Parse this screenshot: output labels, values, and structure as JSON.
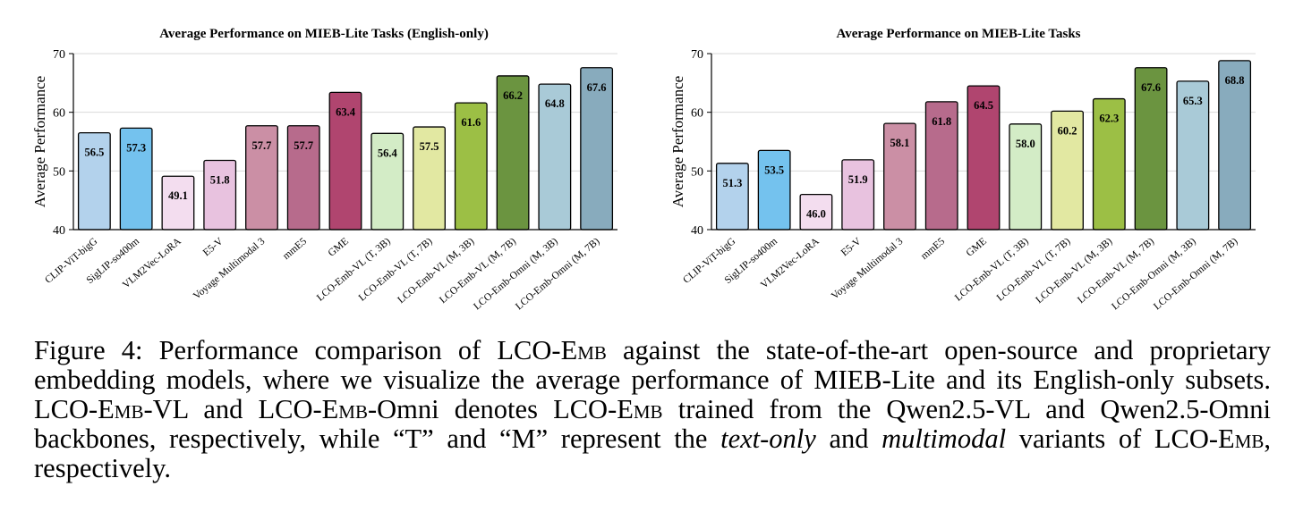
{
  "chart_data": [
    {
      "type": "bar",
      "title": "Average Performance on MIEB-Lite Tasks (English-only)",
      "xlabel": "",
      "ylabel": "Average Performance",
      "ylim": [
        40,
        70
      ],
      "yticks": [
        40,
        50,
        60,
        70
      ],
      "categories": [
        "CLIP-ViT-bigG",
        "SigLIP-so400m",
        "VLM2Vec-LoRA",
        "E5-V",
        "Voyage Multimodal 3",
        "mmE5",
        "GME",
        "LCO-Emb-VL (T, 3B)",
        "LCO-Emb-VL (T, 7B)",
        "LCO-Emb-VL (M, 3B)",
        "LCO-Emb-VL (M, 7B)",
        "LCO-Emb-Omni (M, 3B)",
        "LCO-Emb-Omni (M, 7B)"
      ],
      "values": [
        56.5,
        57.3,
        49.1,
        51.8,
        57.7,
        57.7,
        63.4,
        56.4,
        57.5,
        61.6,
        66.2,
        64.8,
        67.6
      ],
      "value_labels": [
        "56.5",
        "57.3",
        "49.1",
        "51.8",
        "57.7",
        "57.7",
        "63.4",
        "56.4",
        "57.5",
        "61.6",
        "66.2",
        "64.8",
        "67.6"
      ],
      "colors": [
        "#b3d2ec",
        "#74c2ee",
        "#f3ddef",
        "#e8c2df",
        "#cb8fa5",
        "#b76b8c",
        "#b0456f",
        "#d3ecc6",
        "#e2e8a2",
        "#9cbf45",
        "#6b9440",
        "#a9cad7",
        "#88abbd"
      ]
    },
    {
      "type": "bar",
      "title": "Average Performance on MIEB-Lite Tasks",
      "xlabel": "",
      "ylabel": "Average Performance",
      "ylim": [
        40,
        70
      ],
      "yticks": [
        40,
        50,
        60,
        70
      ],
      "categories": [
        "CLIP-ViT-bigG",
        "SigLIP-so400m",
        "VLM2Vec-LoRA",
        "E5-V",
        "Voyage Multimodal 3",
        "mmE5",
        "GME",
        "LCO-Emb-VL (T, 3B)",
        "LCO-Emb-VL (T, 7B)",
        "LCO-Emb-VL (M, 3B)",
        "LCO-Emb-VL (M, 7B)",
        "LCO-Emb-Omni (M, 3B)",
        "LCO-Emb-Omni (M, 7B)"
      ],
      "values": [
        51.3,
        53.5,
        46.0,
        51.9,
        58.1,
        61.8,
        64.5,
        58.0,
        60.2,
        62.3,
        67.6,
        65.3,
        68.8
      ],
      "value_labels": [
        "51.3",
        "53.5",
        "46.0",
        "51.9",
        "58.1",
        "61.8",
        "64.5",
        "58.0",
        "60.2",
        "62.3",
        "67.6",
        "65.3",
        "68.8"
      ],
      "colors": [
        "#b3d2ec",
        "#74c2ee",
        "#f3ddef",
        "#e8c2df",
        "#cb8fa5",
        "#b76b8c",
        "#b0456f",
        "#d3ecc6",
        "#e2e8a2",
        "#9cbf45",
        "#6b9440",
        "#a9cad7",
        "#88abbd"
      ]
    }
  ],
  "caption": {
    "lead": "Figure 4:  Performance comparison of LCO-E",
    "sc1": "mb",
    "p1": " against the state-of-the-art open-source and proprietary embedding models, where we visualize the average performance of MIEB-Lite and its English-only subsets. LCO-E",
    "sc2": "mb",
    "p2": "-VL and LCO-E",
    "sc3": "mb",
    "p3": "-Omni denotes LCO-E",
    "sc4": "mb",
    "p4": " trained from the Qwen2.5-VL and Qwen2.5-Omni backbones, respectively, while “T” and “M” represent the ",
    "italic1": "text-only",
    "p5": " and ",
    "italic2": "multimodal",
    "p6": " variants of LCO-E",
    "sc5": "mb",
    "p7": ", respectively."
  }
}
